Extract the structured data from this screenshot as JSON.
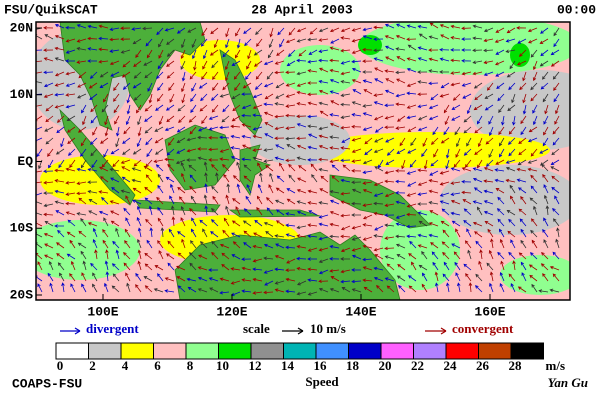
{
  "header": {
    "left": "FSU/QuikSCAT",
    "center": "28 April 2003",
    "right": "00:00"
  },
  "map": {
    "lat_labels": [
      "20N",
      "10N",
      "EQ",
      "10S",
      "20S"
    ],
    "lon_labels": [
      "100E",
      "120E",
      "140E",
      "160E"
    ]
  },
  "legend": {
    "divergent": "divergent",
    "scale": "scale",
    "scale_value": "10 m/s",
    "convergent": "convergent"
  },
  "colorbar": {
    "ticks": [
      0,
      2,
      4,
      6,
      8,
      10,
      12,
      14,
      16,
      18,
      20,
      22,
      24,
      26,
      28
    ],
    "colors": [
      "#ffffff",
      "#c8c8c8",
      "#ffff00",
      "#ffc0c0",
      "#90ff90",
      "#00e000",
      "#909090",
      "#00b4b4",
      "#4090ff",
      "#0000c8",
      "#ff60ff",
      "#b080ff",
      "#ff0000",
      "#c04000",
      "#000000"
    ],
    "unit": "m/s",
    "label": "Speed"
  },
  "footer": {
    "left": "COAPS-FSU",
    "right": "Yan Gu"
  }
}
